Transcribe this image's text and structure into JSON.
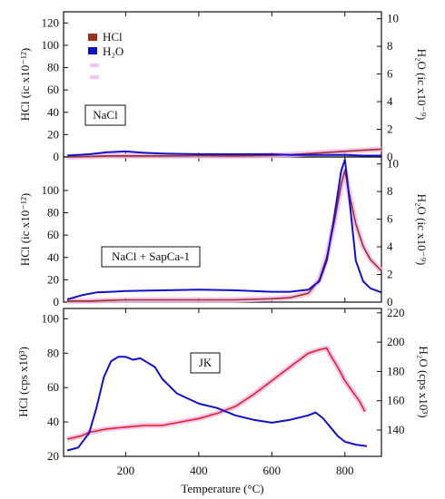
{
  "figure": {
    "xlabel": "Temperature (°C)",
    "x_ticks": [
      200,
      400,
      600,
      800
    ],
    "xlim": [
      30,
      900
    ]
  },
  "legend": {
    "items": [
      {
        "label": "HCl",
        "color": "#a0301e"
      },
      {
        "label": "H₂O",
        "color": "#1111cc"
      }
    ]
  },
  "colors": {
    "hcl": "#a0301e",
    "hcl_jk": "#e8231e",
    "h2o": "#1111cc",
    "highlight": "#f2b8f0"
  },
  "chart_data": [
    {
      "type": "line",
      "panel_label": "NaCl",
      "ylabel_left": "HCl (ic x10⁻¹²)",
      "ylabel_right": "H₂O (ic x10⁻⁹)",
      "ylim_left": [
        0,
        130
      ],
      "ylim_right": [
        0,
        10.5
      ],
      "yticks_left": [
        0,
        20,
        40,
        60,
        80,
        100,
        120
      ],
      "yticks_right": [
        0,
        2,
        4,
        6,
        8,
        10
      ],
      "series": [
        {
          "name": "HCl",
          "axis": "left",
          "x": [
            40,
            100,
            150,
            200,
            300,
            400,
            500,
            600,
            650,
            700,
            750,
            800,
            850,
            900
          ],
          "y": [
            0,
            0.5,
            1,
            1,
            1,
            1.2,
            1,
            1.5,
            2,
            3,
            4,
            5,
            6,
            7
          ]
        },
        {
          "name": "H₂O",
          "axis": "right",
          "x": [
            40,
            100,
            150,
            200,
            250,
            300,
            400,
            500,
            600,
            650,
            700,
            750,
            800,
            850,
            900
          ],
          "y": [
            0.1,
            0.2,
            0.35,
            0.4,
            0.3,
            0.25,
            0.2,
            0.2,
            0.2,
            0.15,
            0.15,
            0.15,
            0.15,
            0.1,
            0.1
          ]
        }
      ]
    },
    {
      "type": "line",
      "panel_label": "NaCl + SapCa-1",
      "ylabel_left": "HCl (ic x10⁻¹²)",
      "ylabel_right": "H₂O (ic x10⁻⁹)",
      "ylim_left": [
        0,
        130
      ],
      "ylim_right": [
        0,
        10.5
      ],
      "yticks_left": [
        0,
        20,
        40,
        60,
        80,
        100
      ],
      "yticks_right": [
        0,
        2,
        4,
        6,
        8,
        10
      ],
      "series": [
        {
          "name": "HCl",
          "axis": "left",
          "x": [
            40,
            100,
            200,
            300,
            400,
            500,
            600,
            650,
            700,
            730,
            750,
            770,
            790,
            800,
            810,
            830,
            850,
            870,
            900
          ],
          "y": [
            1,
            1,
            2,
            2,
            2,
            2,
            3,
            4,
            8,
            20,
            40,
            70,
            105,
            118,
            100,
            70,
            50,
            38,
            28
          ]
        },
        {
          "name": "H₂O",
          "axis": "right",
          "x": [
            40,
            80,
            120,
            160,
            200,
            300,
            400,
            500,
            600,
            650,
            700,
            730,
            750,
            770,
            790,
            800,
            810,
            830,
            850,
            870,
            900
          ],
          "y": [
            0.2,
            0.5,
            0.7,
            0.75,
            0.8,
            0.85,
            0.9,
            0.85,
            0.75,
            0.75,
            0.9,
            1.5,
            3,
            6,
            9.5,
            10.3,
            8,
            3,
            1.5,
            1,
            0.7
          ]
        }
      ]
    },
    {
      "type": "line",
      "panel_label": "JK",
      "ylabel_left": "HCl (cps x10³)",
      "ylabel_right": "H₂O (cps x10³)",
      "ylim_left": [
        20,
        106
      ],
      "ylim_right": [
        122,
        223
      ],
      "yticks_left": [
        20,
        40,
        60,
        80,
        100
      ],
      "yticks_right": [
        140,
        160,
        180,
        200,
        220
      ],
      "series": [
        {
          "name": "HCl",
          "axis": "left",
          "x": [
            40,
            60,
            80,
            100,
            150,
            200,
            250,
            300,
            350,
            400,
            450,
            500,
            550,
            600,
            650,
            700,
            730,
            750,
            760,
            780,
            800,
            820,
            840,
            855
          ],
          "y": [
            30,
            31,
            32,
            34,
            36,
            37,
            38,
            38,
            40,
            42,
            45,
            49,
            56,
            64,
            72,
            80,
            82,
            83,
            79,
            72,
            64,
            58,
            52,
            46
          ]
        },
        {
          "name": "H₂O",
          "axis": "right",
          "x": [
            40,
            70,
            100,
            120,
            140,
            160,
            180,
            200,
            220,
            240,
            260,
            280,
            300,
            340,
            400,
            450,
            500,
            550,
            600,
            650,
            700,
            720,
            740,
            760,
            780,
            800,
            830,
            860
          ],
          "y": [
            126,
            128,
            138,
            155,
            176,
            187,
            190,
            190,
            188,
            189,
            186,
            183,
            175,
            165,
            158,
            155,
            150,
            147,
            145,
            147,
            150,
            152,
            148,
            142,
            136,
            132,
            130,
            129
          ]
        }
      ]
    }
  ]
}
